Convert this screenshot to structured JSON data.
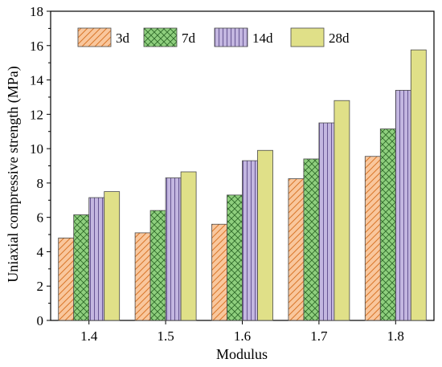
{
  "chart_data": {
    "type": "bar",
    "title": "",
    "xlabel": "Modulus",
    "ylabel": "Uniaxial compressive strength (MPa)",
    "categories": [
      "1.4",
      "1.5",
      "1.6",
      "1.7",
      "1.8"
    ],
    "ylim": [
      0,
      18
    ],
    "yticks": [
      0,
      2,
      4,
      6,
      8,
      10,
      12,
      14,
      16,
      18
    ],
    "grid": false,
    "legend_placement": "top-left",
    "series": [
      {
        "name": "3d",
        "values": [
          4.8,
          5.1,
          5.6,
          8.25,
          9.55
        ],
        "color": "#f9c79d",
        "pattern": "diagonal-hatch"
      },
      {
        "name": "7d",
        "values": [
          6.15,
          6.4,
          7.3,
          9.4,
          11.15
        ],
        "color": "#8fcf7e",
        "pattern": "cross-hatch"
      },
      {
        "name": "14d",
        "values": [
          7.15,
          8.3,
          9.3,
          11.5,
          13.4
        ],
        "color": "#c3b6e0",
        "pattern": "vertical-lines"
      },
      {
        "name": "28d",
        "values": [
          7.5,
          8.65,
          9.9,
          12.8,
          15.75
        ],
        "color": "#e0e088",
        "pattern": "solid"
      }
    ]
  }
}
